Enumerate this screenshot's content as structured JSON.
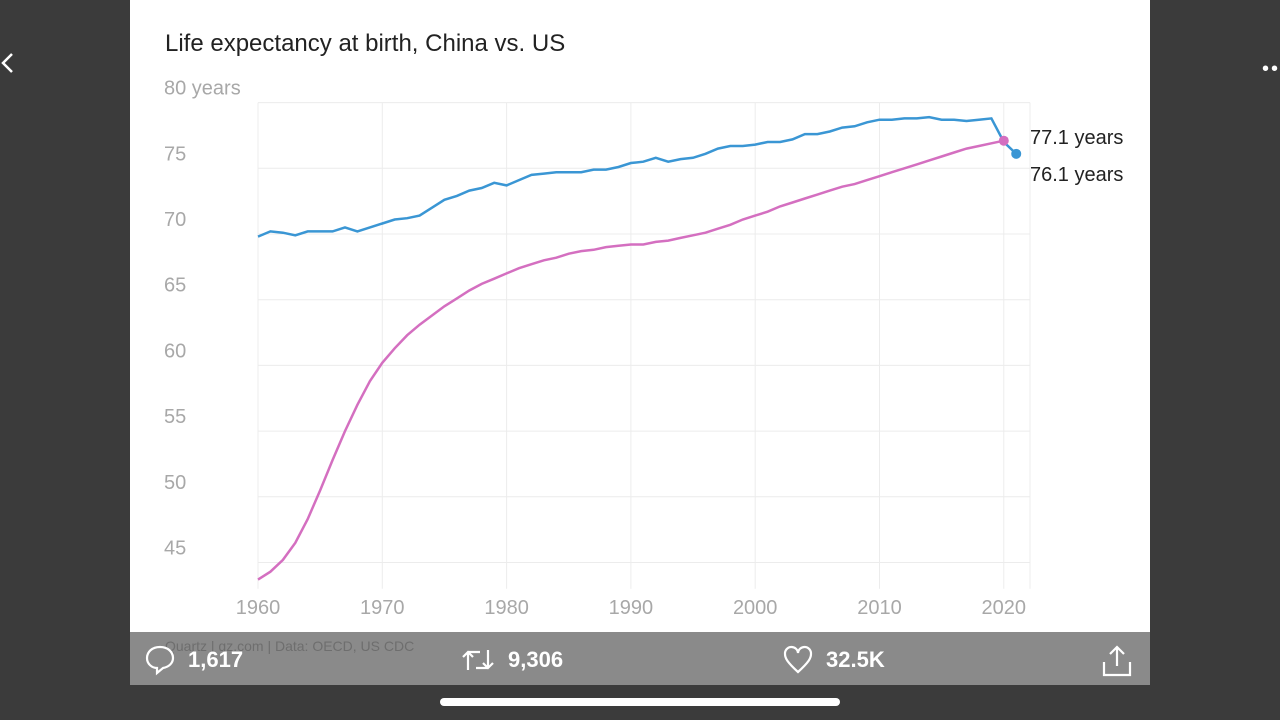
{
  "nav": {
    "back_icon": "chevron-left-icon",
    "more_icon": "ellipsis-icon",
    "more_label": "••"
  },
  "chart_data": {
    "type": "line",
    "title": "Life expectancy at birth, China vs. US",
    "ylabel_top": "80 years",
    "ylim": [
      43,
      80
    ],
    "xlim": [
      1960,
      2021
    ],
    "yticks": [
      80,
      75,
      70,
      65,
      60,
      55,
      50,
      45
    ],
    "ytick_labels": [
      "80 years",
      "75",
      "70",
      "65",
      "60",
      "55",
      "50",
      "45"
    ],
    "xticks": [
      1960,
      1970,
      1980,
      1990,
      2000,
      2010,
      2020
    ],
    "xtick_labels": [
      "1960",
      "1970",
      "1980",
      "1990",
      "2000",
      "2010",
      "2020"
    ],
    "grid": true,
    "source": "Quartz | qz.com | Data: OECD, US CDC",
    "series": [
      {
        "color": "#3a96d4",
        "end_label": "76.1 years",
        "x": [
          1960,
          1961,
          1962,
          1963,
          1964,
          1965,
          1966,
          1967,
          1968,
          1969,
          1970,
          1971,
          1972,
          1973,
          1974,
          1975,
          1976,
          1977,
          1978,
          1979,
          1980,
          1981,
          1982,
          1983,
          1984,
          1985,
          1986,
          1987,
          1988,
          1989,
          1990,
          1991,
          1992,
          1993,
          1994,
          1995,
          1996,
          1997,
          1998,
          1999,
          2000,
          2001,
          2002,
          2003,
          2004,
          2005,
          2006,
          2007,
          2008,
          2009,
          2010,
          2011,
          2012,
          2013,
          2014,
          2015,
          2016,
          2017,
          2018,
          2019,
          2020,
          2021
        ],
        "y": [
          69.8,
          70.2,
          70.1,
          69.9,
          70.2,
          70.2,
          70.2,
          70.5,
          70.2,
          70.5,
          70.8,
          71.1,
          71.2,
          71.4,
          72.0,
          72.6,
          72.9,
          73.3,
          73.5,
          73.9,
          73.7,
          74.1,
          74.5,
          74.6,
          74.7,
          74.7,
          74.7,
          74.9,
          74.9,
          75.1,
          75.4,
          75.5,
          75.8,
          75.5,
          75.7,
          75.8,
          76.1,
          76.5,
          76.7,
          76.7,
          76.8,
          77.0,
          77.0,
          77.2,
          77.6,
          77.6,
          77.8,
          78.1,
          78.2,
          78.5,
          78.7,
          78.7,
          78.8,
          78.8,
          78.9,
          78.7,
          78.7,
          78.6,
          78.7,
          78.8,
          77.0,
          76.1
        ]
      },
      {
        "color": "#d46fc0",
        "end_label": "77.1 years",
        "x": [
          1960,
          1961,
          1962,
          1963,
          1964,
          1965,
          1966,
          1967,
          1968,
          1969,
          1970,
          1971,
          1972,
          1973,
          1974,
          1975,
          1976,
          1977,
          1978,
          1979,
          1980,
          1981,
          1982,
          1983,
          1984,
          1985,
          1986,
          1987,
          1988,
          1989,
          1990,
          1991,
          1992,
          1993,
          1994,
          1995,
          1996,
          1997,
          1998,
          1999,
          2000,
          2001,
          2002,
          2003,
          2004,
          2005,
          2006,
          2007,
          2008,
          2009,
          2010,
          2011,
          2012,
          2013,
          2014,
          2015,
          2016,
          2017,
          2018,
          2019,
          2020
        ],
        "y": [
          43.7,
          44.3,
          45.2,
          46.5,
          48.3,
          50.5,
          52.8,
          55.0,
          57.0,
          58.8,
          60.2,
          61.3,
          62.3,
          63.1,
          63.8,
          64.5,
          65.1,
          65.7,
          66.2,
          66.6,
          67.0,
          67.4,
          67.7,
          68.0,
          68.2,
          68.5,
          68.7,
          68.8,
          69.0,
          69.1,
          69.2,
          69.2,
          69.4,
          69.5,
          69.7,
          69.9,
          70.1,
          70.4,
          70.7,
          71.1,
          71.4,
          71.7,
          72.1,
          72.4,
          72.7,
          73.0,
          73.3,
          73.6,
          73.8,
          74.1,
          74.4,
          74.7,
          75.0,
          75.3,
          75.6,
          75.9,
          76.2,
          76.5,
          76.7,
          76.9,
          77.1
        ]
      }
    ]
  },
  "actions": {
    "reply": {
      "icon": "comment-icon",
      "count": "1,617"
    },
    "retweet": {
      "icon": "retweet-icon",
      "count": "9,306"
    },
    "like": {
      "icon": "heart-icon",
      "count": "32.5K"
    },
    "share": {
      "icon": "share-icon"
    }
  }
}
